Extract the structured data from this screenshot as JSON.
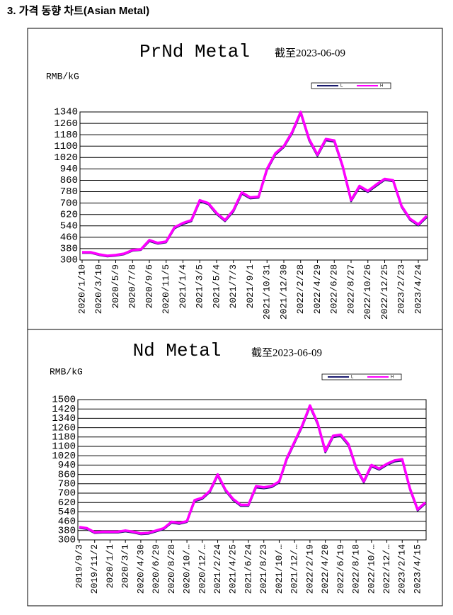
{
  "heading": "3. 가격 동향 차트(Asian Metal)",
  "chart_data": [
    {
      "type": "line",
      "title": "PrNd Metal",
      "subtitle": "截至2023-06-09",
      "ylabel": "RMB/kG",
      "categories": [
        "2020/1/10",
        null,
        "2020/3/10",
        null,
        "2020/5/9",
        null,
        "2020/7/8",
        null,
        "2020/9/6",
        null,
        "2020/11/5",
        null,
        "2021/1/4",
        null,
        "2021/3/5",
        null,
        "2021/5/4",
        null,
        "2021/7/3",
        null,
        "2021/9/1",
        null,
        "2021/10/31",
        null,
        "2021/12/30",
        null,
        "2022/2/28",
        null,
        "2022/4/29",
        null,
        "2022/6/28",
        null,
        "2022/8/27",
        null,
        "2022/10/26",
        null,
        "2022/12/25",
        null,
        "2023/2/23",
        null,
        "2023/4/24",
        null
      ],
      "series": [
        {
          "name": "L",
          "color": "#1a1a6e",
          "values": [
            350,
            350,
            335,
            325,
            330,
            340,
            365,
            370,
            432,
            414,
            424,
            522,
            552,
            572,
            710,
            692,
            622,
            572,
            640,
            765,
            732,
            737,
            930,
            1040,
            1092,
            1190,
            1330,
            1140,
            1030,
            1140,
            1130,
            950,
            712,
            810,
            777,
            820,
            862,
            852,
            672,
            582,
            542,
            600
          ]
        },
        {
          "name": "H",
          "color": "#ff00ff",
          "values": [
            355,
            355,
            340,
            330,
            335,
            345,
            370,
            375,
            440,
            420,
            430,
            530,
            560,
            580,
            720,
            700,
            630,
            580,
            650,
            775,
            740,
            745,
            940,
            1050,
            1100,
            1200,
            1340,
            1150,
            1040,
            1150,
            1140,
            960,
            720,
            820,
            785,
            830,
            870,
            860,
            680,
            590,
            550,
            610
          ]
        }
      ],
      "ylim": [
        300,
        1340
      ],
      "yticks": [
        300,
        380,
        460,
        540,
        620,
        700,
        780,
        860,
        940,
        1020,
        1100,
        1180,
        1260,
        1340
      ],
      "grid": true
    },
    {
      "type": "line",
      "title": "Nd Metal",
      "subtitle": "截至2023-06-09",
      "ylabel": "RMB/kG",
      "categories": [
        "2019/9/3",
        null,
        "2019/11/2",
        null,
        "2020/1/1",
        null,
        "2020/3/1",
        null,
        "2020/4/30",
        null,
        "2020/6/29",
        null,
        "2020/8/28",
        null,
        "2020/10/…",
        null,
        "2020/12/…",
        null,
        "2021/2/24",
        null,
        "2021/4/25",
        null,
        "2021/6/24",
        null,
        "2021/8/23",
        null,
        "2021/10/…",
        null,
        "2021/12/…",
        null,
        "2022/2/19",
        null,
        "2022/4/20",
        null,
        "2022/6/19",
        null,
        "2022/8/18",
        null,
        "2022/10/…",
        null,
        "2022/12/…",
        null,
        "2023/2/14",
        null,
        "2023/4/15",
        null
      ],
      "series": [
        {
          "name": "L",
          "color": "#1a1a6e",
          "values": [
            402,
            392,
            358,
            362,
            362,
            362,
            372,
            362,
            348,
            352,
            372,
            392,
            446,
            436,
            452,
            630,
            650,
            710,
            848,
            720,
            640,
            590,
            590,
            748,
            740,
            750,
            790,
            988,
            1128,
            1268,
            1438,
            1288,
            1048,
            1178,
            1188,
            1108,
            908,
            790,
            928,
            900,
            940,
            970,
            978,
            730,
            550,
            610
          ]
        },
        {
          "name": "H",
          "color": "#ff00ff",
          "values": [
            410,
            400,
            365,
            370,
            370,
            370,
            380,
            370,
            355,
            360,
            380,
            400,
            455,
            445,
            460,
            640,
            660,
            720,
            860,
            730,
            650,
            600,
            600,
            760,
            750,
            760,
            800,
            1000,
            1140,
            1280,
            1450,
            1300,
            1060,
            1190,
            1200,
            1120,
            920,
            800,
            940,
            910,
            950,
            980,
            990,
            740,
            560,
            620
          ]
        }
      ],
      "ylim": [
        300,
        1500
      ],
      "yticks": [
        300,
        380,
        460,
        540,
        620,
        700,
        780,
        860,
        940,
        1020,
        1100,
        1180,
        1260,
        1340,
        1420,
        1500
      ],
      "grid": true
    }
  ]
}
